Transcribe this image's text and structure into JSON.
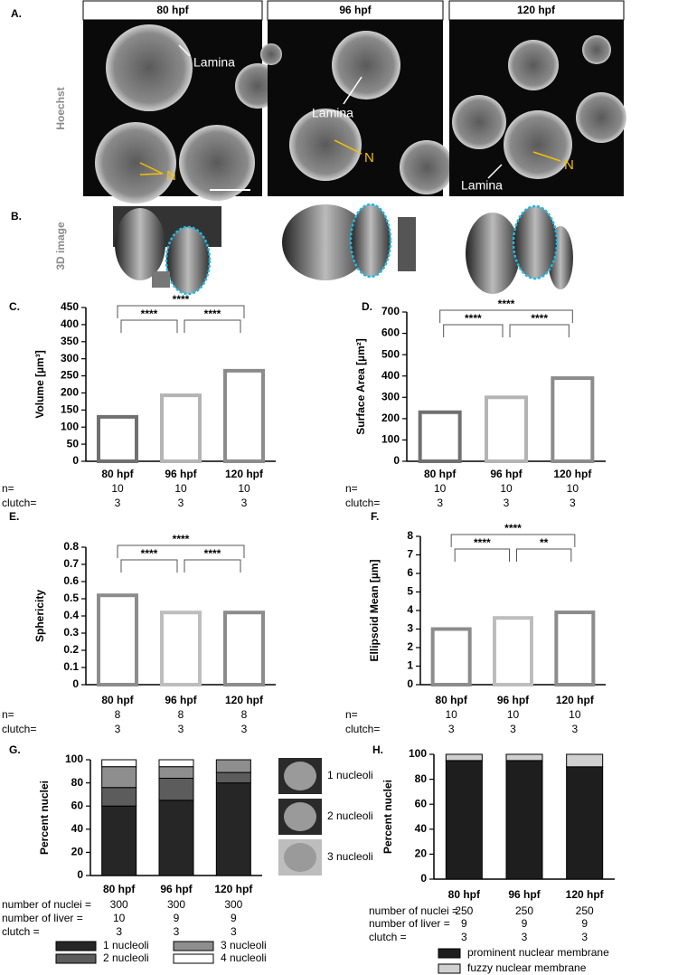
{
  "panel_a": {
    "label": "A.",
    "row_label": "Hoechst",
    "headers": [
      "80 hpf",
      "96 hpf",
      "120 hpf"
    ],
    "annotations": [
      "Lamina",
      "N",
      "Lamina",
      "N",
      "Lamina",
      "N"
    ]
  },
  "panel_b": {
    "label": "B.",
    "row_label": "3D image"
  },
  "chart_data": [
    {
      "type": "bar",
      "label": "C.",
      "ylabel": "Volume [µm³]",
      "categories": [
        "80 hpf",
        "96 hpf",
        "120 hpf"
      ],
      "values": [
        130,
        193,
        265
      ],
      "colors": [
        "#707070",
        "#b4b4b4",
        "#8c8c8c"
      ],
      "ylim": [
        0,
        450
      ],
      "yticks": [
        0,
        50,
        100,
        150,
        200,
        250,
        300,
        350,
        400,
        450
      ],
      "brackets": [
        {
          "from": 0,
          "to": 1,
          "label": "****"
        },
        {
          "from": 1,
          "to": 2,
          "label": "****"
        },
        {
          "from": 0,
          "to": 2,
          "label": "****"
        }
      ],
      "rows": [
        {
          "label": "n=",
          "values": [
            10,
            10,
            10
          ]
        },
        {
          "label": "clutch=",
          "values": [
            3,
            3,
            3
          ]
        }
      ]
    },
    {
      "type": "bar",
      "label": "D.",
      "ylabel": "Surface Area [µm²]",
      "categories": [
        "80 hpf",
        "96 hpf",
        "120 hpf"
      ],
      "values": [
        230,
        300,
        390
      ],
      "colors": [
        "#707070",
        "#b4b4b4",
        "#8c8c8c"
      ],
      "ylim": [
        0,
        700
      ],
      "yticks": [
        0,
        100,
        200,
        300,
        400,
        500,
        600,
        700
      ],
      "brackets": [
        {
          "from": 0,
          "to": 1,
          "label": "****"
        },
        {
          "from": 1,
          "to": 2,
          "label": "****"
        },
        {
          "from": 0,
          "to": 2,
          "label": "****"
        }
      ],
      "rows": [
        {
          "label": "n=",
          "values": [
            10,
            10,
            10
          ]
        },
        {
          "label": "clutch=",
          "values": [
            3,
            3,
            3
          ]
        }
      ]
    },
    {
      "type": "bar",
      "label": "E.",
      "ylabel": "Sphericity",
      "categories": [
        "80 hpf",
        "96 hpf",
        "120 hpf"
      ],
      "values": [
        0.52,
        0.42,
        0.42
      ],
      "colors": [
        "#8c8c8c",
        "#bdbdbd",
        "#8c8c8c"
      ],
      "ylim": [
        0,
        0.8
      ],
      "yticks": [
        0,
        0.1,
        0.2,
        0.3,
        0.4,
        0.5,
        0.6,
        0.7,
        0.8
      ],
      "brackets": [
        {
          "from": 0,
          "to": 1,
          "label": "****"
        },
        {
          "from": 1,
          "to": 2,
          "label": "****"
        },
        {
          "from": 0,
          "to": 2,
          "label": "****"
        }
      ],
      "rows": [
        {
          "label": "n=",
          "values": [
            8,
            8,
            8
          ]
        },
        {
          "label": "clutch=",
          "values": [
            3,
            3,
            3
          ]
        }
      ]
    },
    {
      "type": "bar",
      "label": "F.",
      "ylabel": "Ellipsoid Mean [µm]",
      "categories": [
        "80 hpf",
        "96 hpf",
        "120 hpf"
      ],
      "values": [
        3.0,
        3.6,
        3.9
      ],
      "colors": [
        "#8c8c8c",
        "#bdbdbd",
        "#8c8c8c"
      ],
      "ylim": [
        0,
        8
      ],
      "yticks": [
        0,
        1,
        2,
        3,
        4,
        5,
        6,
        7,
        8
      ],
      "brackets": [
        {
          "from": 0,
          "to": 1,
          "label": "****"
        },
        {
          "from": 1,
          "to": 2,
          "label": "**"
        },
        {
          "from": 0,
          "to": 2,
          "label": "****"
        }
      ],
      "rows": [
        {
          "label": "n=",
          "values": [
            10,
            10,
            10
          ]
        },
        {
          "label": "clutch=",
          "values": [
            3,
            3,
            3
          ]
        }
      ]
    },
    {
      "type": "stacked_bar",
      "label": "G.",
      "ylabel": "Percent nuclei",
      "categories": [
        "80 hpf",
        "96 hpf",
        "120 hpf"
      ],
      "ylim": [
        0,
        100
      ],
      "yticks": [
        0,
        20,
        40,
        60,
        80,
        100
      ],
      "series": [
        {
          "name": "1 nucleoli",
          "color": "#262626",
          "values": [
            60,
            65,
            80
          ]
        },
        {
          "name": "2 nucleoli",
          "color": "#5c5c5c",
          "values": [
            16,
            19,
            9
          ]
        },
        {
          "name": "3 nucleoli",
          "color": "#8e8e8e",
          "values": [
            18,
            10,
            11
          ]
        },
        {
          "name": "4 nucleoli",
          "color": "#ffffff",
          "values": [
            6,
            6,
            0
          ]
        }
      ],
      "rows": [
        {
          "label": "number of nuclei =",
          "values": [
            300,
            300,
            300
          ]
        },
        {
          "label": "number of liver  =",
          "values": [
            10,
            9,
            9
          ]
        },
        {
          "label": "clutch =",
          "values": [
            3,
            3,
            3
          ]
        }
      ],
      "thumbnails": [
        "1 nucleoli",
        "2 nucleoli",
        "3 nucleoli"
      ]
    },
    {
      "type": "stacked_bar",
      "label": "H.",
      "ylabel": "Percent nuclei",
      "categories": [
        "80 hpf",
        "96 hpf",
        "120 hpf"
      ],
      "ylim": [
        0,
        100
      ],
      "yticks": [
        0,
        20,
        40,
        60,
        80,
        100
      ],
      "series": [
        {
          "name": "prominent nuclear membrane",
          "color": "#1e1e1e",
          "values": [
            95,
            95,
            90
          ]
        },
        {
          "name": "fuzzy nuclear membrane",
          "color": "#d0d0d0",
          "values": [
            5,
            5,
            10
          ]
        }
      ],
      "rows": [
        {
          "label": "number of nuclei =",
          "values": [
            250,
            250,
            250
          ]
        },
        {
          "label": "number of liver  =",
          "values": [
            9,
            9,
            9
          ]
        },
        {
          "label": "clutch =",
          "values": [
            3,
            3,
            3
          ]
        }
      ]
    }
  ]
}
